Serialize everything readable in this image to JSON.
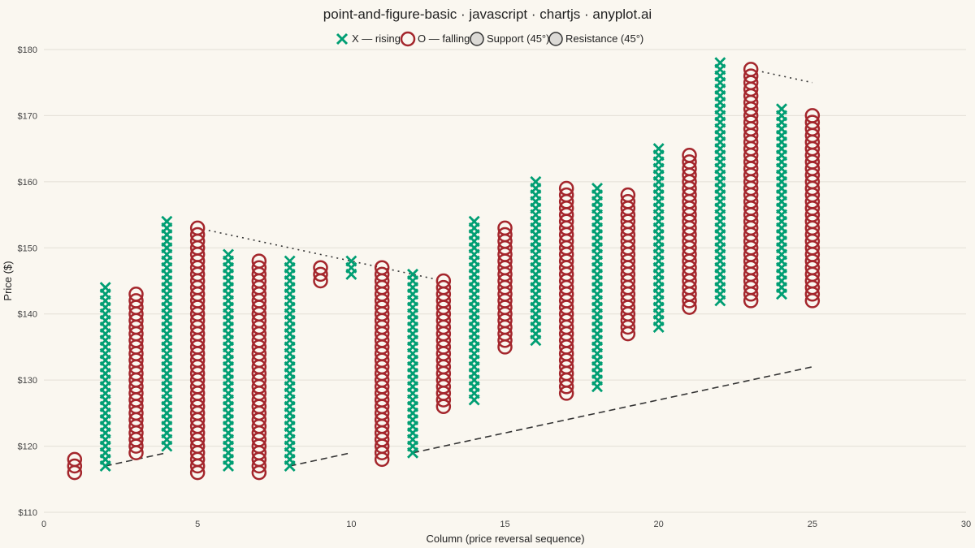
{
  "chart_data": {
    "type": "scatter",
    "subtype": "point-and-figure",
    "title": "point-and-figure-basic · javascript · chartjs · anyplot.ai",
    "xlabel": "Column (price reversal sequence)",
    "ylabel": "Price ($)",
    "xlim": [
      0,
      30
    ],
    "ylim": [
      110,
      180
    ],
    "box_size": 1,
    "x_ticks": [
      "0",
      "5",
      "10",
      "15",
      "20",
      "25",
      "30"
    ],
    "y_ticks": [
      "$110",
      "$120",
      "$130",
      "$140",
      "$150",
      "$160",
      "$170",
      "$180"
    ],
    "grid": true,
    "legend_position": "top-center",
    "legend": [
      {
        "label": "X — rising",
        "marker": "x",
        "color": "#009e73"
      },
      {
        "label": "O — falling",
        "marker": "o",
        "color": "#a4262c"
      },
      {
        "label": "Support (45°)",
        "marker": "circle",
        "color": "#333333"
      },
      {
        "label": "Resistance (45°)",
        "marker": "circle",
        "color": "#333333"
      }
    ],
    "colors": {
      "x": "#009e73",
      "o": "#a4262c",
      "line": "#333333"
    },
    "columns": [
      {
        "col": 1,
        "type": "O",
        "low": 116,
        "high": 118
      },
      {
        "col": 2,
        "type": "X",
        "low": 117,
        "high": 144
      },
      {
        "col": 3,
        "type": "O",
        "low": 119,
        "high": 143
      },
      {
        "col": 4,
        "type": "X",
        "low": 120,
        "high": 154
      },
      {
        "col": 5,
        "type": "O",
        "low": 116,
        "high": 153
      },
      {
        "col": 6,
        "type": "X",
        "low": 117,
        "high": 149
      },
      {
        "col": 7,
        "type": "O",
        "low": 116,
        "high": 148
      },
      {
        "col": 8,
        "type": "X",
        "low": 117,
        "high": 148
      },
      {
        "col": 9,
        "type": "O",
        "low": 145,
        "high": 147
      },
      {
        "col": 10,
        "type": "X",
        "low": 146,
        "high": 148
      },
      {
        "col": 11,
        "type": "O",
        "low": 118,
        "high": 147
      },
      {
        "col": 12,
        "type": "X",
        "low": 119,
        "high": 146
      },
      {
        "col": 13,
        "type": "O",
        "low": 126,
        "high": 145
      },
      {
        "col": 14,
        "type": "X",
        "low": 127,
        "high": 154
      },
      {
        "col": 15,
        "type": "O",
        "low": 135,
        "high": 153
      },
      {
        "col": 16,
        "type": "X",
        "low": 136,
        "high": 160
      },
      {
        "col": 17,
        "type": "O",
        "low": 128,
        "high": 159
      },
      {
        "col": 18,
        "type": "X",
        "low": 129,
        "high": 159
      },
      {
        "col": 19,
        "type": "O",
        "low": 137,
        "high": 158
      },
      {
        "col": 20,
        "type": "X",
        "low": 138,
        "high": 165
      },
      {
        "col": 21,
        "type": "O",
        "low": 141,
        "high": 164
      },
      {
        "col": 22,
        "type": "X",
        "low": 142,
        "high": 178
      },
      {
        "col": 23,
        "type": "O",
        "low": 142,
        "high": 177
      },
      {
        "col": 24,
        "type": "X",
        "low": 143,
        "high": 171
      },
      {
        "col": 25,
        "type": "O",
        "low": 142,
        "high": 170
      }
    ],
    "support_lines": [
      {
        "x": [
          2,
          4
        ],
        "y": [
          117,
          119
        ]
      },
      {
        "x": [
          8,
          10
        ],
        "y": [
          117,
          119
        ]
      },
      {
        "x": [
          12,
          25
        ],
        "y": [
          119,
          132
        ]
      }
    ],
    "resistance_lines": [
      {
        "x": [
          5,
          13
        ],
        "y": [
          153,
          145
        ]
      },
      {
        "x": [
          23,
          25
        ],
        "y": [
          177,
          175
        ]
      }
    ]
  }
}
